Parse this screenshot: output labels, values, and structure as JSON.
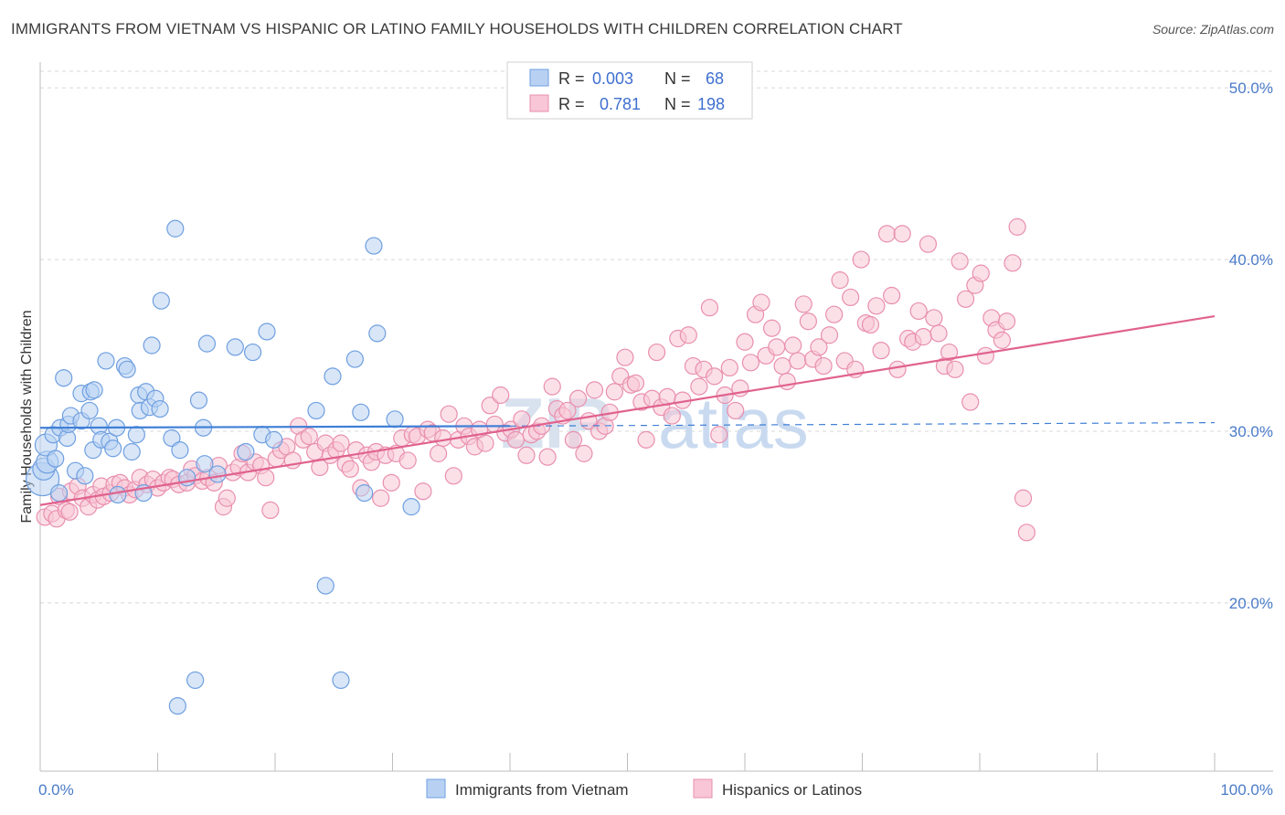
{
  "title": "IMMIGRANTS FROM VIETNAM VS HISPANIC OR LATINO FAMILY HOUSEHOLDS WITH CHILDREN CORRELATION CHART",
  "source": "Source: ZipAtlas.com",
  "watermark": {
    "zip": "ZIP",
    "atlas": "atlas"
  },
  "colors": {
    "blue_fill": "#b8d1f3",
    "blue_stroke": "#6f9fe0",
    "blue_line": "#3f7fd6",
    "pink_fill": "#f8c6d6",
    "pink_stroke": "#e98fae",
    "pink_line": "#e0628e",
    "tick_text": "#4a7bc8",
    "grid": "#d8d8d8"
  },
  "legend": {
    "rows": [
      {
        "r_label": "R =",
        "r_value": "0.003",
        "n_label": "N =",
        "n_value": "68",
        "series": "blue"
      },
      {
        "r_label": "R =",
        "r_value": "0.781",
        "n_label": "N =",
        "n_value": "198",
        "series": "pink"
      }
    ]
  },
  "chart_data": {
    "type": "scatter",
    "title": "IMMIGRANTS FROM VIETNAM VS HISPANIC OR LATINO FAMILY HOUSEHOLDS WITH CHILDREN CORRELATION CHART",
    "xlabel": "",
    "ylabel": "Family Households with Children",
    "xlim": [
      0,
      100
    ],
    "ylim": [
      10.2,
      51.5
    ],
    "x_tick_labels": [
      {
        "value": 0,
        "label": "0.0%"
      },
      {
        "value": 100,
        "label": "100.0%"
      }
    ],
    "x_minor_ticks": [
      10,
      20,
      30,
      40,
      50,
      60,
      70,
      80,
      90,
      100
    ],
    "y_ticks": [
      {
        "value": 20,
        "label": "20.0%"
      },
      {
        "value": 30,
        "label": "30.0%"
      },
      {
        "value": 40,
        "label": "40.0%"
      },
      {
        "value": 50,
        "label": "50.0%"
      }
    ],
    "legend_placement": "top-center",
    "series": [
      {
        "name": "Immigrants from Vietnam",
        "color": "blue",
        "r": 0.003,
        "n": 68,
        "trend": {
          "x": [
            0,
            40
          ],
          "y": [
            30.2,
            30.3
          ],
          "dashed_to": [
            100,
            30.5
          ]
        },
        "points": [
          [
            0.2,
            27.2
          ],
          [
            0.3,
            27.8
          ],
          [
            0.6,
            28.2
          ],
          [
            0.5,
            29.2
          ],
          [
            1.1,
            29.8
          ],
          [
            1.3,
            28.4
          ],
          [
            1.6,
            26.4
          ],
          [
            1.7,
            30.2
          ],
          [
            2.0,
            33.1
          ],
          [
            2.3,
            29.6
          ],
          [
            2.4,
            30.4
          ],
          [
            2.6,
            30.9
          ],
          [
            3.0,
            27.7
          ],
          [
            3.5,
            32.2
          ],
          [
            3.5,
            30.6
          ],
          [
            3.8,
            27.4
          ],
          [
            4.2,
            31.2
          ],
          [
            4.3,
            32.3
          ],
          [
            4.5,
            28.9
          ],
          [
            4.6,
            32.4
          ],
          [
            5.0,
            30.3
          ],
          [
            5.2,
            29.5
          ],
          [
            5.6,
            34.1
          ],
          [
            5.9,
            29.4
          ],
          [
            6.2,
            29.0
          ],
          [
            6.5,
            30.2
          ],
          [
            6.6,
            26.3
          ],
          [
            7.2,
            33.8
          ],
          [
            7.4,
            33.6
          ],
          [
            7.8,
            28.8
          ],
          [
            8.2,
            29.8
          ],
          [
            8.4,
            32.1
          ],
          [
            8.5,
            31.2
          ],
          [
            8.8,
            26.4
          ],
          [
            9.0,
            32.3
          ],
          [
            9.3,
            31.4
          ],
          [
            9.5,
            35.0
          ],
          [
            9.8,
            31.9
          ],
          [
            10.2,
            31.3
          ],
          [
            10.3,
            37.6
          ],
          [
            11.2,
            29.6
          ],
          [
            11.5,
            41.8
          ],
          [
            11.7,
            14.0
          ],
          [
            11.9,
            28.9
          ],
          [
            12.5,
            27.3
          ],
          [
            13.2,
            15.5
          ],
          [
            13.5,
            31.8
          ],
          [
            13.9,
            30.2
          ],
          [
            14.0,
            28.1
          ],
          [
            14.2,
            35.1
          ],
          [
            15.1,
            27.5
          ],
          [
            16.6,
            34.9
          ],
          [
            17.5,
            28.8
          ],
          [
            18.1,
            34.6
          ],
          [
            18.9,
            29.8
          ],
          [
            19.3,
            35.8
          ],
          [
            19.9,
            29.5
          ],
          [
            23.5,
            31.2
          ],
          [
            24.3,
            21.0
          ],
          [
            24.9,
            33.2
          ],
          [
            25.6,
            15.5
          ],
          [
            26.8,
            34.2
          ],
          [
            27.3,
            31.1
          ],
          [
            27.6,
            26.4
          ],
          [
            28.4,
            40.8
          ],
          [
            28.7,
            35.7
          ],
          [
            30.2,
            30.7
          ],
          [
            31.6,
            25.6
          ]
        ]
      },
      {
        "name": "Hispanics or Latinos",
        "color": "pink",
        "r": 0.781,
        "n": 198,
        "trend": {
          "x": [
            0,
            100
          ],
          "y": [
            25.7,
            36.7
          ]
        },
        "points": [
          [
            0.4,
            25.0
          ],
          [
            1.0,
            25.2
          ],
          [
            1.4,
            24.9
          ],
          [
            1.6,
            26.2
          ],
          [
            2.2,
            25.4
          ],
          [
            2.5,
            25.3
          ],
          [
            2.6,
            26.5
          ],
          [
            3.2,
            26.8
          ],
          [
            3.6,
            26.1
          ],
          [
            4.1,
            25.6
          ],
          [
            4.5,
            26.3
          ],
          [
            4.9,
            26.0
          ],
          [
            5.2,
            26.8
          ],
          [
            5.4,
            26.2
          ],
          [
            6.0,
            26.4
          ],
          [
            6.3,
            26.9
          ],
          [
            6.8,
            27.0
          ],
          [
            7.2,
            26.7
          ],
          [
            7.6,
            26.3
          ],
          [
            8.1,
            26.6
          ],
          [
            8.5,
            27.3
          ],
          [
            9.1,
            26.9
          ],
          [
            9.6,
            27.2
          ],
          [
            10.0,
            26.7
          ],
          [
            10.5,
            27.0
          ],
          [
            11.0,
            27.3
          ],
          [
            11.3,
            27.2
          ],
          [
            11.8,
            26.9
          ],
          [
            12.5,
            27.0
          ],
          [
            12.9,
            27.8
          ],
          [
            13.2,
            27.4
          ],
          [
            13.8,
            27.1
          ],
          [
            14.3,
            27.3
          ],
          [
            14.8,
            27.0
          ],
          [
            15.2,
            28.0
          ],
          [
            15.6,
            25.6
          ],
          [
            15.9,
            26.1
          ],
          [
            16.4,
            27.6
          ],
          [
            16.9,
            27.9
          ],
          [
            17.2,
            28.7
          ],
          [
            17.7,
            27.6
          ],
          [
            18.3,
            28.2
          ],
          [
            18.8,
            28.0
          ],
          [
            19.2,
            27.3
          ],
          [
            19.6,
            25.4
          ],
          [
            20.1,
            28.4
          ],
          [
            20.5,
            28.9
          ],
          [
            21.0,
            29.1
          ],
          [
            21.5,
            28.3
          ],
          [
            22.0,
            30.3
          ],
          [
            22.4,
            29.5
          ],
          [
            22.9,
            29.7
          ],
          [
            23.4,
            28.8
          ],
          [
            23.8,
            27.9
          ],
          [
            24.3,
            29.3
          ],
          [
            24.7,
            28.6
          ],
          [
            25.2,
            28.9
          ],
          [
            25.6,
            29.3
          ],
          [
            26.0,
            28.1
          ],
          [
            26.4,
            27.8
          ],
          [
            26.9,
            28.9
          ],
          [
            27.3,
            26.7
          ],
          [
            27.8,
            28.6
          ],
          [
            28.2,
            28.2
          ],
          [
            28.6,
            28.8
          ],
          [
            29.0,
            26.1
          ],
          [
            29.4,
            28.6
          ],
          [
            29.9,
            27.0
          ],
          [
            30.3,
            28.7
          ],
          [
            30.8,
            29.6
          ],
          [
            31.3,
            28.3
          ],
          [
            31.7,
            29.8
          ],
          [
            32.1,
            29.7
          ],
          [
            32.6,
            26.5
          ],
          [
            33.0,
            30.1
          ],
          [
            33.4,
            29.9
          ],
          [
            33.9,
            28.7
          ],
          [
            34.3,
            29.6
          ],
          [
            34.8,
            31.0
          ],
          [
            35.2,
            27.4
          ],
          [
            35.6,
            29.5
          ],
          [
            36.1,
            30.3
          ],
          [
            36.5,
            29.7
          ],
          [
            37.0,
            29.1
          ],
          [
            37.4,
            30.1
          ],
          [
            37.9,
            29.3
          ],
          [
            38.3,
            31.5
          ],
          [
            38.7,
            30.4
          ],
          [
            39.2,
            32.1
          ],
          [
            39.6,
            29.9
          ],
          [
            40.1,
            30.1
          ],
          [
            40.5,
            29.5
          ],
          [
            41.0,
            30.7
          ],
          [
            41.4,
            28.6
          ],
          [
            41.8,
            29.8
          ],
          [
            42.3,
            30.0
          ],
          [
            42.7,
            30.3
          ],
          [
            43.2,
            28.5
          ],
          [
            43.6,
            32.6
          ],
          [
            44.0,
            31.3
          ],
          [
            44.5,
            30.9
          ],
          [
            44.9,
            31.2
          ],
          [
            45.4,
            29.5
          ],
          [
            45.8,
            31.9
          ],
          [
            46.3,
            28.7
          ],
          [
            46.7,
            30.6
          ],
          [
            47.2,
            32.4
          ],
          [
            47.6,
            30.0
          ],
          [
            48.1,
            30.3
          ],
          [
            48.5,
            31.1
          ],
          [
            48.9,
            32.3
          ],
          [
            49.4,
            33.2
          ],
          [
            49.8,
            34.3
          ],
          [
            50.3,
            32.7
          ],
          [
            50.7,
            32.8
          ],
          [
            51.2,
            31.7
          ],
          [
            51.6,
            29.5
          ],
          [
            52.1,
            31.9
          ],
          [
            52.5,
            34.6
          ],
          [
            52.9,
            31.4
          ],
          [
            53.4,
            32.0
          ],
          [
            53.8,
            30.9
          ],
          [
            54.3,
            35.4
          ],
          [
            54.7,
            31.8
          ],
          [
            55.2,
            35.6
          ],
          [
            55.6,
            33.8
          ],
          [
            56.1,
            32.6
          ],
          [
            56.5,
            33.6
          ],
          [
            57.0,
            37.2
          ],
          [
            57.4,
            33.2
          ],
          [
            57.8,
            29.8
          ],
          [
            58.3,
            32.1
          ],
          [
            58.7,
            33.7
          ],
          [
            59.2,
            31.2
          ],
          [
            59.6,
            32.5
          ],
          [
            60.0,
            35.2
          ],
          [
            60.5,
            34.0
          ],
          [
            60.9,
            36.8
          ],
          [
            61.4,
            37.5
          ],
          [
            61.8,
            34.4
          ],
          [
            62.3,
            36.0
          ],
          [
            62.7,
            34.9
          ],
          [
            63.2,
            33.8
          ],
          [
            63.6,
            32.9
          ],
          [
            64.1,
            35.0
          ],
          [
            64.5,
            34.1
          ],
          [
            65.0,
            37.4
          ],
          [
            65.4,
            36.4
          ],
          [
            65.8,
            34.2
          ],
          [
            66.3,
            34.9
          ],
          [
            66.7,
            33.8
          ],
          [
            67.2,
            35.6
          ],
          [
            67.6,
            36.8
          ],
          [
            68.1,
            38.8
          ],
          [
            68.5,
            34.1
          ],
          [
            69.0,
            37.8
          ],
          [
            69.4,
            33.6
          ],
          [
            69.9,
            40.0
          ],
          [
            70.3,
            36.3
          ],
          [
            70.7,
            36.2
          ],
          [
            71.2,
            37.3
          ],
          [
            71.6,
            34.7
          ],
          [
            72.1,
            41.5
          ],
          [
            72.5,
            37.9
          ],
          [
            73.0,
            33.6
          ],
          [
            73.4,
            41.5
          ],
          [
            73.9,
            35.4
          ],
          [
            74.3,
            35.2
          ],
          [
            74.8,
            37.0
          ],
          [
            75.2,
            35.5
          ],
          [
            75.6,
            40.9
          ],
          [
            76.1,
            36.6
          ],
          [
            76.5,
            35.7
          ],
          [
            77.0,
            33.8
          ],
          [
            77.4,
            34.6
          ],
          [
            77.9,
            33.6
          ],
          [
            78.3,
            39.9
          ],
          [
            78.8,
            37.7
          ],
          [
            79.2,
            31.7
          ],
          [
            79.6,
            38.5
          ],
          [
            80.1,
            39.2
          ],
          [
            80.5,
            34.4
          ],
          [
            81.0,
            36.6
          ],
          [
            81.4,
            35.9
          ],
          [
            81.9,
            35.3
          ],
          [
            82.3,
            36.4
          ],
          [
            82.8,
            39.8
          ],
          [
            83.2,
            41.9
          ],
          [
            83.7,
            26.1
          ],
          [
            84.0,
            24.1
          ]
        ]
      }
    ]
  },
  "bottom_legend": {
    "items": [
      {
        "label": "Immigrants from Vietnam",
        "series": "blue"
      },
      {
        "label": "Hispanics or Latinos",
        "series": "pink"
      }
    ]
  }
}
